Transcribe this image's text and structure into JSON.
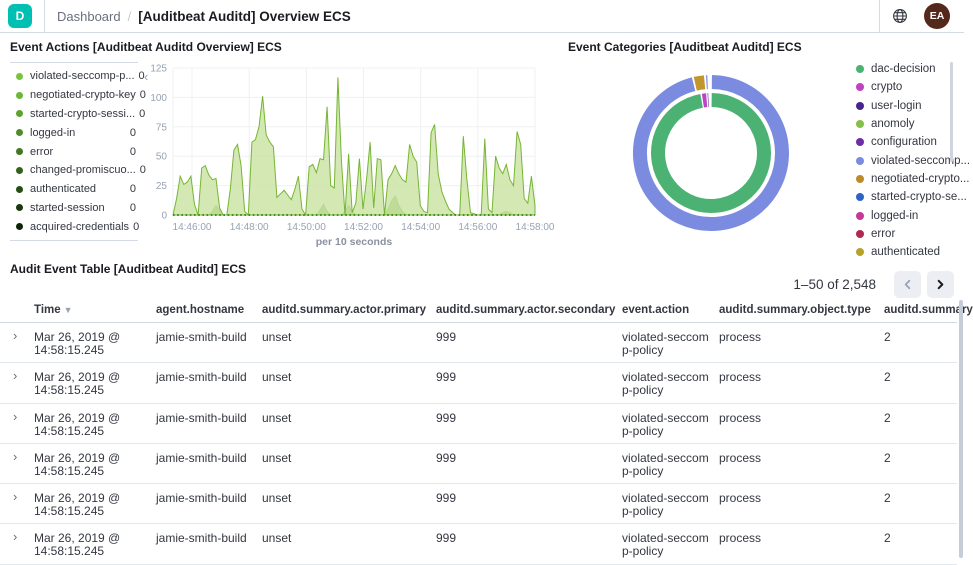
{
  "topbar": {
    "logo_letter": "D",
    "breadcrumb": "Dashboard",
    "breadcrumb_sep": "/",
    "title": "[Auditbeat Auditd] Overview ECS",
    "avatar_initials": "EA"
  },
  "event_actions_panel": {
    "title": "Event Actions [Auditbeat Auditd Overview] ECS",
    "collapse_icon": "‹",
    "legend": [
      {
        "label": "violated-seccomp-p...",
        "value": "0",
        "color": "#79c33d"
      },
      {
        "label": "negotiated-crypto-key",
        "value": "0",
        "color": "#6db637"
      },
      {
        "label": "started-crypto-sessi...",
        "value": "0",
        "color": "#5ea230"
      },
      {
        "label": "logged-in",
        "value": "0",
        "color": "#4f8d29"
      },
      {
        "label": "error",
        "value": "0",
        "color": "#417822"
      },
      {
        "label": "changed-promiscuo...",
        "value": "0",
        "color": "#33631b"
      },
      {
        "label": "authenticated",
        "value": "0",
        "color": "#254e14"
      },
      {
        "label": "started-session",
        "value": "0",
        "color": "#18390d"
      },
      {
        "label": "acquired-credentials",
        "value": "0",
        "color": "#0d2507"
      }
    ]
  },
  "event_categories_panel": {
    "title": "Event Categories [Auditbeat Auditd] ECS",
    "legend": [
      {
        "label": "dac-decision",
        "color": "#4cb273"
      },
      {
        "label": "crypto",
        "color": "#bf41c4"
      },
      {
        "label": "user-login",
        "color": "#47248f"
      },
      {
        "label": "anomoly",
        "color": "#84bf48"
      },
      {
        "label": "configuration",
        "color": "#6f2da8"
      },
      {
        "label": "violated-seccomp...",
        "color": "#7b8ce0"
      },
      {
        "label": "negotiated-crypto...",
        "color": "#bd8b2b"
      },
      {
        "label": "started-crypto-se...",
        "color": "#2e62c4"
      },
      {
        "label": "logged-in",
        "color": "#c43a96"
      },
      {
        "label": "error",
        "color": "#b0294e"
      },
      {
        "label": "authenticated",
        "color": "#b5a22b"
      }
    ]
  },
  "chart_data": [
    {
      "type": "area",
      "title": "Event Actions [Auditbeat Auditd Overview] ECS",
      "xlabel": "per 10 seconds",
      "ylabel": "",
      "ylim": [
        0,
        125
      ],
      "yticks": [
        0,
        25,
        50,
        75,
        100,
        125
      ],
      "xticks": [
        "14:46:00",
        "14:48:00",
        "14:50:00",
        "14:52:00",
        "14:54:00",
        "14:56:00",
        "14:58:00"
      ],
      "x_range": [
        "14:45:40",
        "14:58:20"
      ],
      "grid": true,
      "series": [
        {
          "name": "violated-seccomp-policy",
          "fill": "#cbe4a5",
          "stroke": "#76b534",
          "values": [
            0,
            14,
            33,
            26,
            28,
            33,
            9,
            0,
            40,
            42,
            34,
            30,
            31,
            6,
            0,
            0,
            22,
            55,
            60,
            42,
            3,
            0,
            62,
            64,
            75,
            101,
            68,
            62,
            58,
            15,
            18,
            21,
            17,
            13,
            22,
            33,
            5,
            0,
            41,
            43,
            36,
            48,
            47,
            92,
            25,
            23,
            117,
            45,
            0,
            52,
            2,
            10,
            48,
            5,
            30,
            62,
            6,
            48,
            47,
            0,
            30,
            35,
            42,
            35,
            30,
            28,
            60,
            50,
            45,
            8,
            3,
            2,
            70,
            77,
            35,
            20,
            12,
            5,
            2,
            0,
            0,
            67,
            30,
            2,
            1,
            0,
            0,
            65,
            5,
            2,
            50,
            40,
            35,
            43,
            30,
            25,
            71,
            60,
            14,
            10,
            33,
            8
          ]
        },
        {
          "name": "negotiated-crypto-key",
          "fill": "#5aa32e",
          "stroke": "#478c22",
          "values": [
            0,
            0,
            0,
            0,
            0,
            0,
            0,
            0,
            0,
            0,
            0,
            3,
            8,
            4,
            0,
            0,
            0,
            0,
            0,
            0,
            0,
            0,
            0,
            0,
            0,
            0,
            0,
            0,
            0,
            0,
            0,
            0,
            0,
            0,
            0,
            0,
            0,
            0,
            0,
            0,
            0,
            4,
            9,
            3,
            0,
            0,
            0,
            0,
            3,
            8,
            3,
            0,
            0,
            0,
            0,
            0,
            0,
            0,
            0,
            0,
            5,
            12,
            16,
            8,
            3,
            0,
            0,
            0,
            0,
            0,
            0,
            0,
            0,
            0,
            0,
            0,
            0,
            0,
            0,
            0,
            0,
            0,
            0,
            0,
            0,
            0,
            0,
            0,
            0,
            0,
            0,
            0,
            2,
            3,
            2,
            0,
            0,
            0,
            0,
            0,
            0,
            0
          ]
        }
      ]
    },
    {
      "type": "donut",
      "title": "Event Categories [Auditbeat Auditd] ECS",
      "legend_position": "right",
      "rings": [
        {
          "name": "inner",
          "segments": [
            {
              "label": "dac-decision",
              "sweep_deg": 350.5,
              "color": "#4cb273"
            },
            {
              "label": "crypto",
              "sweep_deg": 5.5,
              "color": "#bf41c4"
            },
            {
              "label": "user-login",
              "sweep_deg": 2.0,
              "color": "#5229a5"
            }
          ]
        },
        {
          "name": "outer",
          "segments": [
            {
              "label": "violated-seccomp-policy",
              "sweep_deg": 346.5,
              "color": "#7b8ce0"
            },
            {
              "label": "negotiated-crypto-key",
              "sweep_deg": 9.0,
              "color": "#c2962c"
            },
            {
              "label": "started-crypto-session",
              "sweep_deg": 2.5,
              "color": "#8d9be2"
            }
          ]
        }
      ]
    }
  ],
  "table": {
    "title": "Audit Event Table [Auditbeat Auditd] ECS",
    "pagination": {
      "range_text": "1–50 of 2,548"
    },
    "columns": [
      "Time",
      "agent.hostname",
      "auditd.summary.actor.primary",
      "auditd.summary.actor.secondary",
      "event.action",
      "auditd.summary.object.type",
      "auditd.summary"
    ],
    "sort_column": "Time",
    "rows": [
      {
        "time": "Mar 26, 2019 @ 14:58:15.245",
        "hostname": "jamie-smith-build",
        "primary": "unset",
        "secondary": "999",
        "action": "violated-seccomp-policy",
        "object_type": "process",
        "summary": "2"
      },
      {
        "time": "Mar 26, 2019 @ 14:58:15.245",
        "hostname": "jamie-smith-build",
        "primary": "unset",
        "secondary": "999",
        "action": "violated-seccomp-policy",
        "object_type": "process",
        "summary": "2"
      },
      {
        "time": "Mar 26, 2019 @ 14:58:15.245",
        "hostname": "jamie-smith-build",
        "primary": "unset",
        "secondary": "999",
        "action": "violated-seccomp-policy",
        "object_type": "process",
        "summary": "2"
      },
      {
        "time": "Mar 26, 2019 @ 14:58:15.245",
        "hostname": "jamie-smith-build",
        "primary": "unset",
        "secondary": "999",
        "action": "violated-seccomp-policy",
        "object_type": "process",
        "summary": "2"
      },
      {
        "time": "Mar 26, 2019 @ 14:58:15.245",
        "hostname": "jamie-smith-build",
        "primary": "unset",
        "secondary": "999",
        "action": "violated-seccomp-policy",
        "object_type": "process",
        "summary": "2"
      },
      {
        "time": "Mar 26, 2019 @ 14:58:15.245",
        "hostname": "jamie-smith-build",
        "primary": "unset",
        "secondary": "999",
        "action": "violated-seccomp-policy",
        "object_type": "process",
        "summary": "2"
      }
    ]
  }
}
